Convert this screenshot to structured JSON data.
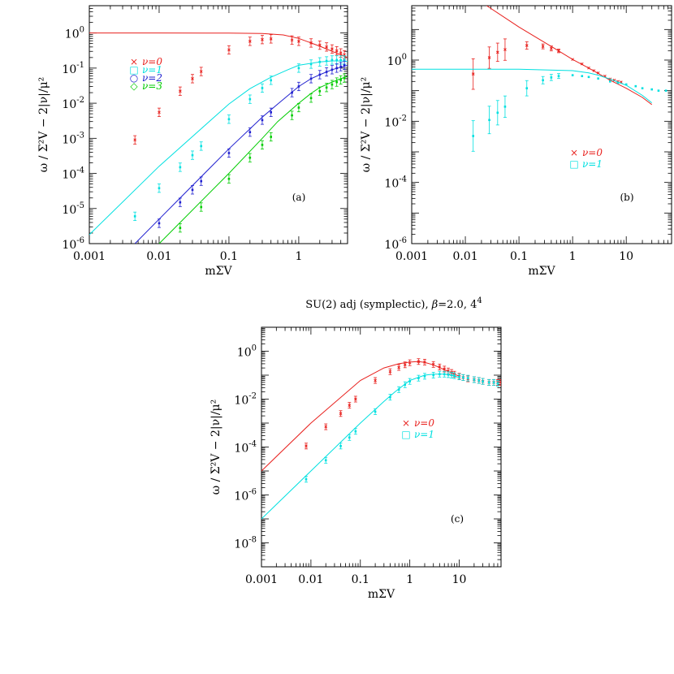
{
  "caption": {
    "prefix": "SU(2) adj (symplectic), ",
    "beta_symbol": "β",
    "suffix": "=2.0, 4",
    "superscript": "4"
  },
  "chart_data": [
    {
      "type": "scatter",
      "panel_label": "(a)",
      "xlabel": "mΣV",
      "ylabel": "ω / Σ²V − 2|ν|/μ²",
      "xscale": "log",
      "yscale": "log",
      "xlim": [
        0.001,
        5
      ],
      "ylim": [
        1e-06,
        6
      ],
      "x_ticks": [
        0.001,
        0.01,
        0.1,
        1
      ],
      "x_tick_labels": [
        "0.001",
        "0.01",
        "0.1",
        "1"
      ],
      "y_ticks": [
        1e-06,
        1e-05,
        0.0001,
        0.001,
        0.01,
        0.1,
        1
      ],
      "y_tick_exponents": [
        "-6",
        "-5",
        "-4",
        "-3",
        "-2",
        "-1",
        "0"
      ],
      "legend": {
        "placement": "center-left",
        "entries": [
          {
            "marker": "×",
            "label": "ν=0",
            "color": "#e8211e"
          },
          {
            "marker": "□",
            "label": "ν=1",
            "color": "#00e0e0"
          },
          {
            "marker": "○",
            "label": "ν=2",
            "color": "#1f1fcf"
          },
          {
            "marker": "◇",
            "label": "ν=3",
            "color": "#00cc00"
          }
        ]
      },
      "series": [
        {
          "color": "#e8211e",
          "curve": {
            "x": [
              0.001,
              0.01,
              0.1,
              0.3,
              0.6,
              1,
              1.5,
              2,
              3,
              4,
              5
            ],
            "y": [
              1,
              1,
              0.99,
              0.97,
              0.88,
              0.7,
              0.52,
              0.42,
              0.3,
              0.24,
              0.2
            ]
          },
          "points": {
            "x": [
              0.0045,
              0.01,
              0.02,
              0.03,
              0.04,
              0.1,
              0.2,
              0.3,
              0.4,
              0.8,
              1,
              1.5,
              2,
              2.5,
              3,
              3.5,
              4,
              4.5
            ],
            "y": [
              0.0009,
              0.0055,
              0.022,
              0.05,
              0.08,
              0.33,
              0.58,
              0.65,
              0.68,
              0.63,
              0.58,
              0.52,
              0.45,
              0.4,
              0.35,
              0.31,
              0.27,
              0.24
            ]
          }
        },
        {
          "color": "#00e0e0",
          "curve": {
            "x": [
              0.001,
              0.01,
              0.1,
              0.2,
              0.4,
              0.7,
              1,
              2,
              3,
              4,
              5
            ],
            "y": [
              1.8e-06,
              0.00016,
              0.0095,
              0.026,
              0.055,
              0.09,
              0.12,
              0.15,
              0.16,
              0.16,
              0.155
            ]
          },
          "points": {
            "x": [
              0.0045,
              0.01,
              0.02,
              0.03,
              0.04,
              0.1,
              0.2,
              0.3,
              0.4,
              1,
              1.5,
              2,
              2.5,
              3,
              3.5,
              4,
              4.5
            ],
            "y": [
              6e-06,
              3.8e-05,
              0.00015,
              0.00033,
              0.0006,
              0.0035,
              0.013,
              0.027,
              0.045,
              0.1,
              0.13,
              0.15,
              0.16,
              0.17,
              0.17,
              0.17,
              0.17
            ]
          }
        },
        {
          "color": "#1f1fcf",
          "curve": {
            "x": [
              0.0045,
              0.01,
              0.1,
              0.3,
              0.5,
              1,
              1.5,
              2,
              3,
              4,
              5
            ],
            "y": [
              1e-06,
              5e-06,
              0.0005,
              0.004,
              0.0095,
              0.03,
              0.05,
              0.065,
              0.09,
              0.105,
              0.12
            ]
          },
          "points": {
            "x": [
              0.01,
              0.02,
              0.03,
              0.04,
              0.1,
              0.2,
              0.3,
              0.4,
              0.8,
              1,
              1.5,
              2,
              2.5,
              3,
              3.5,
              4,
              4.5
            ],
            "y": [
              3.8e-06,
              1.5e-05,
              3.4e-05,
              6e-05,
              0.00038,
              0.0015,
              0.0033,
              0.0055,
              0.02,
              0.03,
              0.05,
              0.065,
              0.078,
              0.09,
              0.1,
              0.11,
              0.12
            ]
          }
        },
        {
          "color": "#00cc00",
          "curve": {
            "x": [
              0.01,
              0.02,
              0.1,
              0.3,
              0.5,
              1,
              1.5,
              2,
              3,
              4,
              5
            ],
            "y": [
              1e-06,
              4e-06,
              0.0001,
              0.001,
              0.003,
              0.01,
              0.019,
              0.028,
              0.04,
              0.05,
              0.058
            ]
          },
          "points": {
            "x": [
              0.02,
              0.04,
              0.1,
              0.2,
              0.3,
              0.4,
              0.8,
              1,
              1.5,
              2,
              2.5,
              3,
              3.5,
              4,
              4.5
            ],
            "y": [
              2.8e-06,
              1.1e-05,
              7e-05,
              0.00028,
              0.00065,
              0.0011,
              0.0045,
              0.0075,
              0.014,
              0.022,
              0.028,
              0.034,
              0.04,
              0.046,
              0.052
            ]
          }
        }
      ]
    },
    {
      "type": "scatter",
      "panel_label": "(b)",
      "xlabel": "mΣV",
      "ylabel": "ω / Σ²V − 2|ν|/μ²",
      "xscale": "log",
      "yscale": "log",
      "xlim": [
        0.001,
        70
      ],
      "ylim": [
        1e-06,
        60
      ],
      "x_ticks": [
        0.001,
        0.01,
        0.1,
        1,
        10
      ],
      "x_tick_labels": [
        "0.001",
        "0.01",
        "0.1",
        "1",
        "10"
      ],
      "y_ticks": [
        1e-06,
        0.0001,
        0.01,
        1
      ],
      "y_tick_exponents": [
        "-6",
        "-4",
        "-2",
        "0"
      ],
      "legend": {
        "placement": "bottom-right",
        "entries": [
          {
            "marker": "×",
            "label": "ν=0",
            "color": "#e8211e"
          },
          {
            "marker": "□",
            "label": "ν=1",
            "color": "#00e0e0"
          }
        ]
      },
      "series": [
        {
          "color": "#e8211e",
          "curve": {
            "x": [
              0.025,
              0.1,
              0.5,
              1,
              2,
              5,
              10,
              20,
              30
            ],
            "y": [
              60,
              12,
              2.2,
              1.05,
              0.55,
              0.22,
              0.12,
              0.06,
              0.035
            ]
          },
          "points": {
            "x": [
              0.014,
              0.028,
              0.04,
              0.055,
              0.14,
              0.28,
              0.4,
              0.55,
              1,
              1.5,
              2,
              2.5,
              3,
              4,
              5,
              6,
              7,
              8
            ],
            "y": [
              0.35,
              1.2,
              1.8,
              2.2,
              3,
              2.8,
              2.4,
              2,
              1.05,
              0.75,
              0.55,
              0.45,
              0.38,
              0.3,
              0.24,
              0.22,
              0.2,
              0.19
            ]
          },
          "errors": [
            0.5,
            0.35,
            0.3,
            0.35,
            0.12,
            0.08,
            0.08,
            0.06,
            0,
            0,
            0,
            0,
            0,
            0,
            0,
            0,
            0,
            0
          ]
        },
        {
          "color": "#00e0e0",
          "curve": {
            "x": [
              0.001,
              0.1,
              1,
              2,
              3,
              5,
              10,
              20,
              30
            ],
            "y": [
              0.5,
              0.5,
              0.45,
              0.38,
              0.32,
              0.24,
              0.15,
              0.07,
              0.04
            ]
          },
          "points": {
            "x": [
              0.014,
              0.028,
              0.04,
              0.055,
              0.14,
              0.28,
              0.4,
              0.55,
              1,
              1.5,
              2,
              3,
              5,
              7,
              10,
              15,
              20,
              30,
              40,
              55
            ],
            "y": [
              0.0033,
              0.011,
              0.019,
              0.03,
              0.12,
              0.22,
              0.27,
              0.3,
              0.32,
              0.3,
              0.28,
              0.25,
              0.2,
              0.18,
              0.16,
              0.14,
              0.12,
              0.11,
              0.1,
              0.1
            ]
          },
          "errors": [
            0.5,
            0.45,
            0.4,
            0.35,
            0.25,
            0.12,
            0.1,
            0.08,
            0,
            0,
            0,
            0,
            0,
            0,
            0,
            0,
            0,
            0,
            0,
            0
          ]
        }
      ]
    },
    {
      "type": "scatter",
      "panel_label": "(c)",
      "xlabel": "mΣV",
      "ylabel": "ω / Σ²V − 2|ν|/μ²",
      "xscale": "log",
      "yscale": "log",
      "xlim": [
        0.001,
        70
      ],
      "ylim": [
        1e-09,
        10
      ],
      "x_ticks": [
        0.001,
        0.01,
        0.1,
        1,
        10
      ],
      "x_tick_labels": [
        "0.001",
        "0.01",
        "0.1",
        "1",
        "10"
      ],
      "y_ticks": [
        1e-08,
        1e-06,
        0.0001,
        0.01,
        1
      ],
      "y_tick_exponents": [
        "-8",
        "-6",
        "-4",
        "-2",
        "0"
      ],
      "legend": {
        "placement": "center-right",
        "entries": [
          {
            "marker": "×",
            "label": "ν=0",
            "color": "#e8211e"
          },
          {
            "marker": "□",
            "label": "ν=1",
            "color": "#00e0e0"
          }
        ]
      },
      "series": [
        {
          "color": "#e8211e",
          "curve": {
            "x": [
              0.001,
              0.01,
              0.1,
              0.3,
              0.6,
              1,
              1.5,
              2,
              3,
              5,
              8,
              10
            ],
            "y": [
              1e-05,
              0.001,
              0.06,
              0.2,
              0.3,
              0.35,
              0.37,
              0.34,
              0.27,
              0.17,
              0.11,
              0.09
            ]
          },
          "points": {
            "x": [
              0.008,
              0.02,
              0.04,
              0.06,
              0.08,
              0.2,
              0.4,
              0.6,
              0.8,
              1,
              1.5,
              2,
              3,
              4,
              5,
              6,
              7,
              8,
              10,
              12,
              15,
              20,
              25,
              30,
              40,
              50,
              60,
              70
            ],
            "y": [
              0.00011,
              0.0007,
              0.0025,
              0.0055,
              0.01,
              0.06,
              0.14,
              0.21,
              0.27,
              0.33,
              0.37,
              0.35,
              0.28,
              0.22,
              0.18,
              0.15,
              0.13,
              0.11,
              0.09,
              0.08,
              0.07,
              0.065,
              0.06,
              0.055,
              0.05,
              0.05,
              0.05,
              0.05
            ]
          }
        },
        {
          "color": "#00e0e0",
          "curve": {
            "x": [
              0.001,
              0.01,
              0.1,
              0.3,
              0.5,
              1,
              2,
              3,
              5,
              7,
              10
            ],
            "y": [
              1e-07,
              1e-05,
              0.001,
              0.008,
              0.02,
              0.06,
              0.1,
              0.11,
              0.11,
              0.1,
              0.08
            ]
          },
          "points": {
            "x": [
              0.008,
              0.02,
              0.04,
              0.06,
              0.08,
              0.2,
              0.4,
              0.6,
              0.8,
              1,
              1.5,
              2,
              3,
              4,
              5,
              6,
              7,
              8,
              10,
              12,
              15,
              20,
              25,
              30,
              40,
              50,
              60
            ],
            "y": [
              4.5e-06,
              2.8e-05,
              0.00011,
              0.00025,
              0.00045,
              0.003,
              0.012,
              0.025,
              0.04,
              0.055,
              0.075,
              0.09,
              0.1,
              0.11,
              0.11,
              0.105,
              0.1,
              0.095,
              0.085,
              0.08,
              0.075,
              0.065,
              0.06,
              0.055,
              0.05,
              0.05,
              0.045
            ]
          }
        }
      ]
    }
  ]
}
